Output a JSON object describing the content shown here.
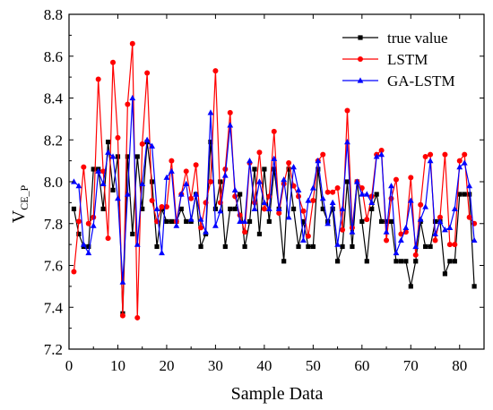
{
  "chart_data": {
    "type": "line",
    "title": "",
    "xlabel": "Sample Data",
    "ylabel_main": "V",
    "ylabel_sub": "CE_P",
    "xlim": [
      0,
      85
    ],
    "ylim": [
      7.2,
      8.8
    ],
    "xticks": [
      0,
      10,
      20,
      30,
      40,
      50,
      60,
      70,
      80
    ],
    "yticks": [
      7.2,
      7.4,
      7.6,
      7.8,
      8.0,
      8.2,
      8.4,
      8.6,
      8.8
    ],
    "ytick_labels": [
      "7.2",
      "7.4",
      "7.6",
      "7.8",
      "8.0",
      "8.2",
      "8.4",
      "8.6",
      "8.8"
    ],
    "grid": false,
    "legend_position": "top-right",
    "x": [
      1,
      2,
      3,
      4,
      5,
      6,
      7,
      8,
      9,
      10,
      11,
      12,
      13,
      14,
      15,
      16,
      17,
      18,
      19,
      20,
      21,
      22,
      23,
      24,
      25,
      26,
      27,
      28,
      29,
      30,
      31,
      32,
      33,
      34,
      35,
      36,
      37,
      38,
      39,
      40,
      41,
      42,
      43,
      44,
      45,
      46,
      47,
      48,
      49,
      50,
      51,
      52,
      53,
      54,
      55,
      56,
      57,
      58,
      59,
      60,
      61,
      62,
      63,
      64,
      65,
      66,
      67,
      68,
      69,
      70,
      71,
      72,
      73,
      74,
      75,
      76,
      77,
      78,
      79,
      80,
      81,
      82,
      83
    ],
    "series": [
      {
        "name": "true value",
        "color": "#000000",
        "marker": "square",
        "values": [
          7.87,
          7.75,
          7.69,
          7.69,
          8.06,
          8.06,
          7.87,
          8.19,
          7.96,
          8.12,
          7.37,
          8.12,
          7.75,
          8.12,
          7.87,
          8.19,
          8.0,
          7.69,
          7.87,
          7.81,
          7.81,
          7.81,
          7.87,
          7.81,
          7.81,
          7.94,
          7.69,
          7.75,
          8.19,
          7.87,
          8.0,
          7.69,
          7.87,
          7.87,
          7.94,
          7.69,
          7.81,
          8.06,
          7.75,
          8.06,
          7.81,
          8.06,
          7.87,
          7.62,
          8.06,
          7.87,
          7.69,
          7.81,
          7.69,
          7.69,
          8.06,
          7.87,
          7.81,
          7.87,
          7.62,
          7.69,
          8.0,
          7.69,
          8.0,
          7.81,
          7.62,
          7.87,
          7.94,
          7.81,
          7.81,
          7.81,
          7.62,
          7.62,
          7.62,
          7.5,
          7.62,
          7.81,
          7.69,
          7.69,
          7.81,
          7.81,
          7.56,
          7.62,
          7.62,
          7.94,
          7.94,
          7.94,
          7.5
        ]
      },
      {
        "name": "LSTM",
        "color": "#ff0000",
        "marker": "circle",
        "values": [
          7.57,
          7.81,
          8.07,
          7.8,
          7.83,
          8.49,
          8.05,
          7.73,
          8.57,
          8.21,
          7.36,
          8.37,
          8.66,
          7.35,
          8.18,
          8.52,
          7.91,
          7.81,
          7.88,
          7.88,
          8.1,
          7.81,
          7.94,
          8.05,
          7.92,
          8.08,
          7.78,
          7.9,
          8.0,
          8.53,
          7.9,
          8.06,
          8.33,
          7.93,
          7.84,
          7.76,
          8.09,
          7.9,
          8.14,
          7.87,
          7.93,
          8.24,
          7.85,
          7.99,
          8.09,
          7.98,
          7.93,
          7.86,
          7.74,
          7.91,
          8.1,
          8.13,
          7.95,
          7.95,
          7.97,
          7.77,
          8.34,
          7.78,
          8.0,
          7.97,
          7.82,
          7.93,
          8.13,
          8.15,
          7.72,
          7.92,
          8.01,
          7.75,
          7.76,
          8.02,
          7.65,
          7.89,
          8.12,
          8.13,
          7.72,
          7.83,
          8.13,
          7.7,
          7.7,
          8.1,
          8.13,
          7.83,
          7.8
        ]
      },
      {
        "name": "GA-LSTM",
        "color": "#0000ff",
        "marker": "triangle",
        "values": [
          8.0,
          7.98,
          7.7,
          7.66,
          7.79,
          8.05,
          7.99,
          8.14,
          8.12,
          7.92,
          7.52,
          7.94,
          8.4,
          7.7,
          7.99,
          8.2,
          8.17,
          7.87,
          7.66,
          8.02,
          8.05,
          7.79,
          7.94,
          7.99,
          7.82,
          7.94,
          7.82,
          7.76,
          8.33,
          7.79,
          7.86,
          8.03,
          8.27,
          7.96,
          7.81,
          7.81,
          8.1,
          7.87,
          8.0,
          7.9,
          7.87,
          8.11,
          7.87,
          8.01,
          7.83,
          8.07,
          7.96,
          7.72,
          7.91,
          7.97,
          8.1,
          7.92,
          7.8,
          7.9,
          7.7,
          7.87,
          8.19,
          7.76,
          8.0,
          7.94,
          7.94,
          7.9,
          8.12,
          8.13,
          7.76,
          7.98,
          7.66,
          7.72,
          7.78,
          7.91,
          7.69,
          7.82,
          7.88,
          8.1,
          7.75,
          7.81,
          7.77,
          7.78,
          7.87,
          8.07,
          8.09,
          7.98,
          7.72
        ]
      }
    ]
  }
}
